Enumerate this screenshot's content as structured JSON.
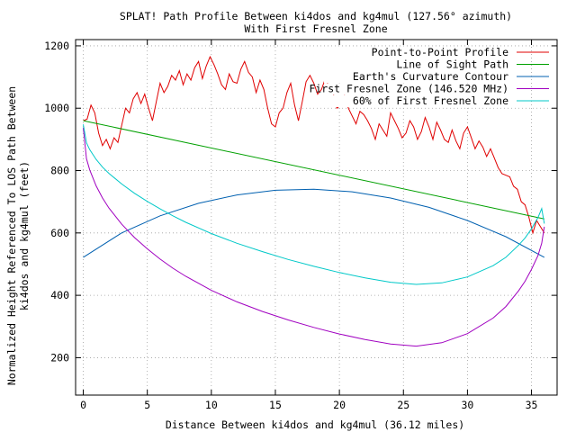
{
  "chart_data": {
    "type": "line",
    "title": "SPLAT! Path Profile Between ki4dos and kg4mul (127.56° azimuth)",
    "subtitle": "With First Fresnel Zone",
    "xlabel": "Distance Between ki4dos and kg4mul (36.12 miles)",
    "ylabel_line1": "Normalized Height Referenced To LOS Path Between",
    "ylabel_line2": "ki4dos and kg4mul (feet)",
    "xlim": [
      -0.6,
      37.0
    ],
    "ylim": [
      80,
      1220
    ],
    "xticks": [
      0,
      5,
      10,
      15,
      20,
      25,
      30,
      35
    ],
    "xtick_labels": [
      "0",
      "5",
      "10",
      "15",
      "20",
      "25",
      "30",
      "35"
    ],
    "yticks": [
      200,
      400,
      600,
      800,
      1000,
      1200
    ],
    "ytick_labels": [
      "200",
      "400",
      "600",
      "800",
      "1000",
      "1200"
    ],
    "grid": true,
    "legend_position": "top-right",
    "series": [
      {
        "name": "Point-to-Point Profile",
        "color": "#e00000",
        "x": [
          0.0,
          0.3,
          0.6,
          0.9,
          1.2,
          1.5,
          1.8,
          2.1,
          2.4,
          2.7,
          3.0,
          3.3,
          3.6,
          3.9,
          4.2,
          4.5,
          4.8,
          5.1,
          5.4,
          5.7,
          6.0,
          6.3,
          6.6,
          6.9,
          7.2,
          7.5,
          7.8,
          8.1,
          8.4,
          8.7,
          9.0,
          9.3,
          9.6,
          9.9,
          10.2,
          10.5,
          10.8,
          11.1,
          11.4,
          11.7,
          12.0,
          12.3,
          12.6,
          12.9,
          13.2,
          13.5,
          13.8,
          14.1,
          14.4,
          14.7,
          15.0,
          15.3,
          15.6,
          15.9,
          16.2,
          16.5,
          16.8,
          17.1,
          17.4,
          17.7,
          18.0,
          18.3,
          18.6,
          18.9,
          19.2,
          19.5,
          19.8,
          20.1,
          20.4,
          20.7,
          21.0,
          21.3,
          21.6,
          21.9,
          22.2,
          22.5,
          22.8,
          23.1,
          23.4,
          23.7,
          24.0,
          24.3,
          24.6,
          24.9,
          25.2,
          25.5,
          25.8,
          26.1,
          26.4,
          26.7,
          27.0,
          27.3,
          27.6,
          27.9,
          28.2,
          28.5,
          28.8,
          29.1,
          29.4,
          29.7,
          30.0,
          30.3,
          30.6,
          30.9,
          31.2,
          31.5,
          31.8,
          32.1,
          32.4,
          32.7,
          33.0,
          33.3,
          33.6,
          33.9,
          34.2,
          34.5,
          34.8,
          35.1,
          35.4,
          35.7,
          36.0
        ],
        "y": [
          960,
          965,
          1010,
          985,
          920,
          880,
          900,
          870,
          905,
          890,
          945,
          1000,
          985,
          1030,
          1050,
          1015,
          1045,
          1000,
          960,
          1020,
          1080,
          1050,
          1070,
          1105,
          1090,
          1120,
          1075,
          1110,
          1090,
          1130,
          1150,
          1095,
          1135,
          1165,
          1140,
          1110,
          1075,
          1060,
          1110,
          1085,
          1080,
          1125,
          1150,
          1115,
          1100,
          1050,
          1090,
          1060,
          1000,
          950,
          940,
          985,
          1000,
          1050,
          1080,
          1010,
          960,
          1020,
          1085,
          1105,
          1080,
          1045,
          1060,
          1095,
          1070,
          1050,
          1000,
          1010,
          1040,
          1000,
          975,
          950,
          990,
          980,
          960,
          935,
          900,
          950,
          930,
          910,
          985,
          960,
          935,
          905,
          920,
          960,
          940,
          900,
          925,
          970,
          940,
          900,
          955,
          930,
          900,
          890,
          930,
          895,
          870,
          920,
          940,
          905,
          870,
          895,
          875,
          845,
          870,
          840,
          810,
          790,
          785,
          780,
          750,
          740,
          700,
          690,
          650,
          600,
          640,
          620,
          600
        ]
      },
      {
        "name": "Line of Sight Path",
        "color": "#00a000",
        "x": [
          0.0,
          36.0
        ],
        "y": [
          960,
          645
        ]
      },
      {
        "name": "Earth's Curvature Contour",
        "color": "#0060b0",
        "x": [
          0,
          3,
          6,
          9,
          12,
          15,
          18,
          21,
          24,
          27,
          30,
          33,
          36
        ],
        "y": [
          522,
          600,
          655,
          695,
          722,
          737,
          740,
          732,
          712,
          682,
          640,
          588,
          522
        ]
      },
      {
        "name": "First Fresnel Zone (146.520 MHz)",
        "color": "#a000c0",
        "x": [
          0,
          0.25,
          0.5,
          1,
          1.5,
          2,
          3,
          4,
          5,
          6,
          7,
          8,
          10,
          12,
          14,
          16,
          18,
          20,
          22,
          24,
          26,
          28,
          30,
          32,
          33,
          34,
          34.5,
          35,
          35.5,
          35.8,
          36.0
        ],
        "y": [
          938,
          838,
          802,
          751,
          712,
          680,
          628,
          585,
          549,
          516,
          487,
          461,
          416,
          379,
          348,
          321,
          297,
          276,
          258,
          244,
          237,
          248,
          277,
          327,
          364,
          415,
          445,
          483,
          527,
          567,
          620
        ]
      },
      {
        "name": "60% of First Fresnel Zone",
        "color": "#00c8c8",
        "x": [
          0,
          0.25,
          0.5,
          1,
          1.5,
          2,
          3,
          4,
          5,
          6,
          7,
          8,
          10,
          12,
          14,
          16,
          18,
          20,
          22,
          24,
          26,
          28,
          30,
          32,
          33,
          34,
          34.5,
          35,
          35.5,
          35.8,
          36.0
        ],
        "y": [
          948,
          889,
          867,
          836,
          811,
          791,
          757,
          727,
          701,
          677,
          655,
          634,
          598,
          567,
          540,
          515,
          493,
          473,
          456,
          442,
          435,
          440,
          459,
          495,
          522,
          561,
          584,
          613,
          649,
          678,
          630
        ]
      }
    ]
  }
}
